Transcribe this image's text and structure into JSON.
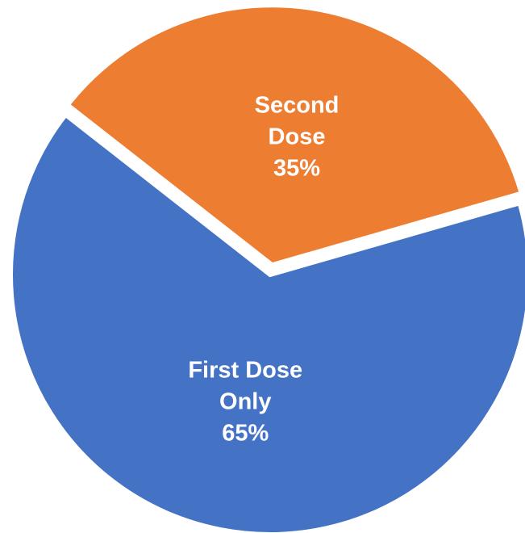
{
  "chart_data": {
    "type": "pie",
    "categories": [
      "First Dose Only",
      "Second Dose"
    ],
    "values": [
      65,
      35
    ],
    "value_labels": [
      "65%",
      "35%"
    ],
    "colors": [
      "#4472c4",
      "#ed7d31"
    ]
  }
}
